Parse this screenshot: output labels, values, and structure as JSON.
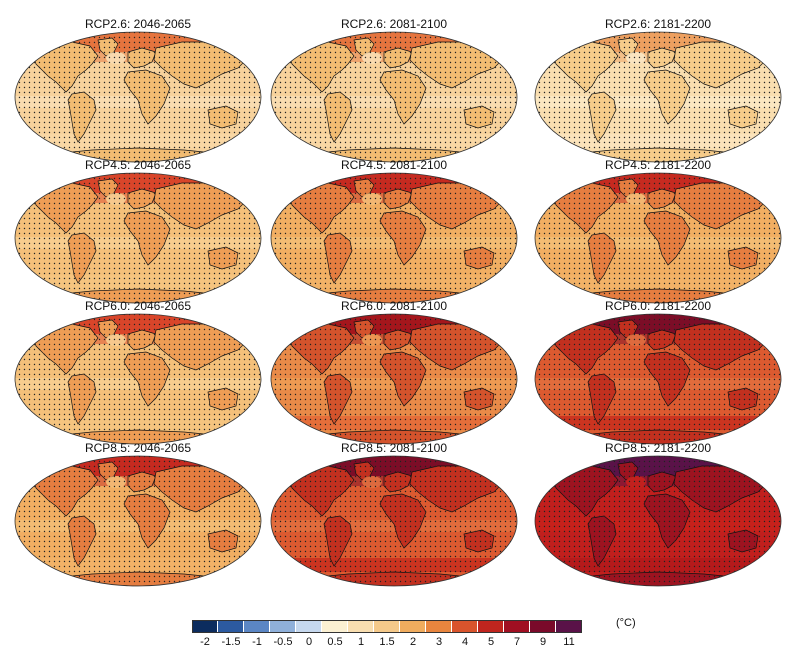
{
  "panels": [
    {
      "title": "RCP2.6: 2046-2065",
      "scenario": "RCP2.6",
      "period": "2046-2065",
      "level": 1
    },
    {
      "title": "RCP2.6: 2081-2100",
      "scenario": "RCP2.6",
      "period": "2081-2100",
      "level": 1
    },
    {
      "title": "RCP2.6: 2181-2200",
      "scenario": "RCP2.6",
      "period": "2181-2200",
      "level": 0
    },
    {
      "title": "RCP4.5: 2046-2065",
      "scenario": "RCP4.5",
      "period": "2046-2065",
      "level": 2
    },
    {
      "title": "RCP4.5: 2081-2100",
      "scenario": "RCP4.5",
      "period": "2081-2100",
      "level": 3
    },
    {
      "title": "RCP4.5: 2181-2200",
      "scenario": "RCP4.5",
      "period": "2181-2200",
      "level": 3
    },
    {
      "title": "RCP6.0: 2046-2065",
      "scenario": "RCP6.0",
      "period": "2046-2065",
      "level": 2
    },
    {
      "title": "RCP6.0: 2081-2100",
      "scenario": "RCP6.0",
      "period": "2081-2100",
      "level": 4
    },
    {
      "title": "RCP6.0: 2181-2200",
      "scenario": "RCP6.0",
      "period": "2181-2200",
      "level": 5
    },
    {
      "title": "RCP8.5: 2046-2065",
      "scenario": "RCP8.5",
      "period": "2046-2065",
      "level": 3
    },
    {
      "title": "RCP8.5: 2081-2100",
      "scenario": "RCP8.5",
      "period": "2081-2100",
      "level": 5
    },
    {
      "title": "RCP8.5: 2181-2200",
      "scenario": "RCP8.5",
      "period": "2181-2200",
      "level": 6
    }
  ],
  "level_palettes": [
    {
      "ocean": "#f9deb0",
      "land": "#f6cc8a",
      "arctic": "#eda060",
      "tropics": "#fbe8c6",
      "south": "#fbe3bc"
    },
    {
      "ocean": "#f7d29c",
      "land": "#f2bc72",
      "arctic": "#e5743e",
      "tropics": "#f9dfb5",
      "south": "#f8d7a5"
    },
    {
      "ocean": "#f4c07a",
      "land": "#ee9d55",
      "arctic": "#d9452a",
      "tropics": "#f7cf94",
      "south": "#f5c47f"
    },
    {
      "ocean": "#f1ae62",
      "land": "#e57d40",
      "arctic": "#c62a20",
      "tropics": "#f4bf78",
      "south": "#f2b268"
    },
    {
      "ocean": "#e98a48",
      "land": "#d4532c",
      "arctic": "#a5161c",
      "tropics": "#ef9d55",
      "south": "#e46a38"
    },
    {
      "ocean": "#dc5a30",
      "land": "#c2301f",
      "arctic": "#7c0d27",
      "tropics": "#e27040",
      "south": "#c9301f"
    },
    {
      "ocean": "#c11f1d",
      "land": "#9d1320",
      "arctic": "#5a1248",
      "tropics": "#c8221c",
      "south": "#b41a1c"
    }
  ],
  "colorbar": {
    "unit": "(°C)",
    "ticks": [
      "-2",
      "-1.5",
      "-1",
      "-0.5",
      "0",
      "0.5",
      "1",
      "1.5",
      "2",
      "3",
      "4",
      "5",
      "7",
      "9",
      "11"
    ],
    "colors": [
      "#0c2c5e",
      "#2c5aa0",
      "#5b86c4",
      "#8fb0da",
      "#c6d8ee",
      "#fbf0d2",
      "#f9deb0",
      "#f5c98a",
      "#f0ac5e",
      "#e8853e",
      "#d9542c",
      "#c0251e",
      "#a00f22",
      "#7a0a2a",
      "#5a1248"
    ]
  }
}
